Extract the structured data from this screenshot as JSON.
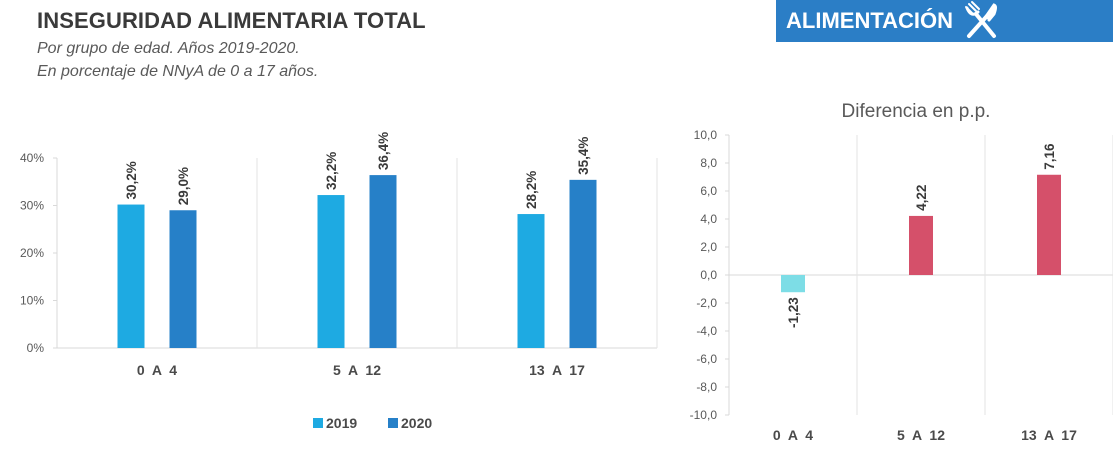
{
  "header": {
    "title": "INSEGURIDAD ALIMENTARIA TOTAL",
    "subtitle_line1": "Por grupo de edad. Años 2019-2020.",
    "subtitle_line2": "En porcentaje de NNyA de 0 a 17 años."
  },
  "banner": {
    "label": "ALIMENTACIÓN",
    "icon": "fork-knife-icon",
    "color": "#2b7ec6"
  },
  "chart_data": [
    {
      "type": "bar",
      "title": "",
      "categories": [
        "0  A  4",
        "5  A  12",
        "13  A  17"
      ],
      "series": [
        {
          "name": "2019",
          "color": "#1eaae2",
          "values": [
            30.2,
            32.2,
            28.2
          ],
          "labels": [
            "30,2%",
            "32,2%",
            "28,2%"
          ]
        },
        {
          "name": "2020",
          "color": "#2680c8",
          "values": [
            29.0,
            36.4,
            35.4
          ],
          "labels": [
            "29,0%",
            "36,4%",
            "35,4%"
          ]
        }
      ],
      "ylim": [
        0,
        40
      ],
      "yticks": [
        0,
        10,
        20,
        30,
        40
      ],
      "ytick_labels": [
        "0%",
        "10%",
        "20%",
        "30%",
        "40%"
      ],
      "xlabel": "",
      "ylabel": "",
      "grid": "vertical category separators",
      "legend": "bottom-center"
    },
    {
      "type": "bar",
      "title": "Diferencia en p.p.",
      "categories": [
        "0  A  4",
        "5  A  12",
        "13  A  17"
      ],
      "values": [
        -1.23,
        4.22,
        7.16
      ],
      "labels": [
        "-1,23",
        "4,22",
        "7,16"
      ],
      "colors": [
        "#7ddde6",
        "#d5506a",
        "#d5506a"
      ],
      "ylim": [
        -10,
        10
      ],
      "yticks": [
        -10,
        -8,
        -6,
        -4,
        -2,
        0,
        2,
        4,
        6,
        8,
        10
      ],
      "ytick_labels": [
        "-10,0",
        "-8,0",
        "-6,0",
        "-4,0",
        "-2,0",
        "0,0",
        "2,0",
        "4,0",
        "6,0",
        "8,0",
        "10,0"
      ],
      "xlabel": "",
      "ylabel": "",
      "grid": "vertical category separators",
      "legend": "none"
    }
  ]
}
